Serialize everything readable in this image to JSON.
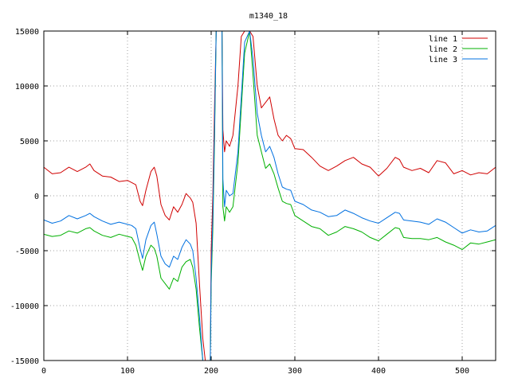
{
  "chart_data": {
    "type": "line",
    "title": "m1340_18",
    "xlabel": "",
    "ylabel": "",
    "xlim": [
      0,
      540
    ],
    "ylim": [
      -15000,
      15000
    ],
    "xticks": [
      0,
      100,
      200,
      300,
      400,
      500
    ],
    "yticks": [
      -15000,
      -10000,
      -5000,
      0,
      5000,
      10000,
      15000
    ],
    "grid": true,
    "legend_position": "top-right",
    "series": [
      {
        "name": "line 1",
        "color": "#d00000",
        "points": [
          [
            0,
            2600
          ],
          [
            10,
            2000
          ],
          [
            20,
            2100
          ],
          [
            30,
            2600
          ],
          [
            40,
            2200
          ],
          [
            50,
            2600
          ],
          [
            55,
            2900
          ],
          [
            60,
            2300
          ],
          [
            70,
            1800
          ],
          [
            80,
            1700
          ],
          [
            90,
            1300
          ],
          [
            100,
            1400
          ],
          [
            105,
            1200
          ],
          [
            110,
            1000
          ],
          [
            115,
            -500
          ],
          [
            118,
            -900
          ],
          [
            122,
            500
          ],
          [
            128,
            2200
          ],
          [
            132,
            2600
          ],
          [
            135,
            1800
          ],
          [
            140,
            -800
          ],
          [
            145,
            -1800
          ],
          [
            150,
            -2200
          ],
          [
            155,
            -1000
          ],
          [
            160,
            -1500
          ],
          [
            165,
            -800
          ],
          [
            170,
            200
          ],
          [
            175,
            -200
          ],
          [
            178,
            -600
          ],
          [
            182,
            -2500
          ],
          [
            186,
            -8000
          ],
          [
            190,
            -13000
          ],
          [
            193,
            -15000
          ],
          [
            199,
            -15000
          ],
          [
            200,
            -5000
          ],
          [
            202,
            0
          ],
          [
            204,
            8000
          ],
          [
            206,
            15000
          ],
          [
            213,
            15000
          ],
          [
            214,
            6000
          ],
          [
            216,
            4000
          ],
          [
            218,
            5000
          ],
          [
            222,
            4500
          ],
          [
            226,
            5500
          ],
          [
            232,
            10000
          ],
          [
            236,
            14500
          ],
          [
            240,
            15000
          ],
          [
            246,
            15000
          ],
          [
            250,
            14500
          ],
          [
            255,
            10000
          ],
          [
            260,
            8000
          ],
          [
            265,
            8500
          ],
          [
            270,
            9000
          ],
          [
            275,
            7000
          ],
          [
            280,
            5500
          ],
          [
            285,
            5000
          ],
          [
            290,
            5500
          ],
          [
            295,
            5200
          ],
          [
            300,
            4300
          ],
          [
            310,
            4200
          ],
          [
            320,
            3500
          ],
          [
            330,
            2700
          ],
          [
            340,
            2300
          ],
          [
            350,
            2700
          ],
          [
            360,
            3200
          ],
          [
            370,
            3500
          ],
          [
            380,
            2900
          ],
          [
            390,
            2600
          ],
          [
            400,
            1800
          ],
          [
            410,
            2500
          ],
          [
            420,
            3500
          ],
          [
            425,
            3300
          ],
          [
            430,
            2600
          ],
          [
            440,
            2300
          ],
          [
            450,
            2500
          ],
          [
            460,
            2100
          ],
          [
            470,
            3200
          ],
          [
            480,
            3000
          ],
          [
            490,
            2000
          ],
          [
            500,
            2300
          ],
          [
            510,
            1900
          ],
          [
            520,
            2100
          ],
          [
            530,
            2000
          ],
          [
            540,
            2600
          ]
        ]
      },
      {
        "name": "line 2",
        "color": "#00b000",
        "points": [
          [
            0,
            -3500
          ],
          [
            10,
            -3700
          ],
          [
            20,
            -3600
          ],
          [
            30,
            -3200
          ],
          [
            40,
            -3400
          ],
          [
            50,
            -3000
          ],
          [
            55,
            -2900
          ],
          [
            60,
            -3200
          ],
          [
            70,
            -3600
          ],
          [
            80,
            -3800
          ],
          [
            90,
            -3500
          ],
          [
            100,
            -3700
          ],
          [
            105,
            -3800
          ],
          [
            110,
            -4500
          ],
          [
            115,
            -6000
          ],
          [
            118,
            -6800
          ],
          [
            122,
            -5500
          ],
          [
            128,
            -4500
          ],
          [
            132,
            -4800
          ],
          [
            135,
            -5500
          ],
          [
            140,
            -7500
          ],
          [
            145,
            -8000
          ],
          [
            150,
            -8500
          ],
          [
            155,
            -7500
          ],
          [
            160,
            -7800
          ],
          [
            165,
            -6500
          ],
          [
            170,
            -6000
          ],
          [
            175,
            -5800
          ],
          [
            178,
            -6500
          ],
          [
            182,
            -8500
          ],
          [
            186,
            -12000
          ],
          [
            190,
            -15000
          ],
          [
            199,
            -15000
          ],
          [
            200,
            -8000
          ],
          [
            202,
            -3000
          ],
          [
            204,
            5000
          ],
          [
            206,
            15000
          ],
          [
            213,
            15000
          ],
          [
            214,
            -1000
          ],
          [
            216,
            -2300
          ],
          [
            218,
            -1000
          ],
          [
            222,
            -1500
          ],
          [
            226,
            -1000
          ],
          [
            232,
            3000
          ],
          [
            236,
            8000
          ],
          [
            240,
            13000
          ],
          [
            246,
            15000
          ],
          [
            250,
            11000
          ],
          [
            255,
            5500
          ],
          [
            260,
            4000
          ],
          [
            265,
            2500
          ],
          [
            270,
            2900
          ],
          [
            275,
            2000
          ],
          [
            280,
            700
          ],
          [
            285,
            -500
          ],
          [
            290,
            -700
          ],
          [
            295,
            -800
          ],
          [
            300,
            -1800
          ],
          [
            310,
            -2300
          ],
          [
            320,
            -2800
          ],
          [
            330,
            -3000
          ],
          [
            340,
            -3600
          ],
          [
            350,
            -3300
          ],
          [
            360,
            -2800
          ],
          [
            370,
            -3000
          ],
          [
            380,
            -3300
          ],
          [
            390,
            -3800
          ],
          [
            400,
            -4100
          ],
          [
            410,
            -3500
          ],
          [
            420,
            -2900
          ],
          [
            425,
            -3000
          ],
          [
            430,
            -3800
          ],
          [
            440,
            -3900
          ],
          [
            450,
            -3900
          ],
          [
            460,
            -4000
          ],
          [
            470,
            -3800
          ],
          [
            480,
            -4200
          ],
          [
            490,
            -4500
          ],
          [
            500,
            -4900
          ],
          [
            510,
            -4300
          ],
          [
            520,
            -4400
          ],
          [
            530,
            -4200
          ],
          [
            540,
            -4000
          ]
        ]
      },
      {
        "name": "line 3",
        "color": "#0070e0",
        "points": [
          [
            0,
            -2200
          ],
          [
            10,
            -2500
          ],
          [
            20,
            -2300
          ],
          [
            30,
            -1800
          ],
          [
            40,
            -2100
          ],
          [
            50,
            -1800
          ],
          [
            55,
            -1600
          ],
          [
            60,
            -1900
          ],
          [
            70,
            -2300
          ],
          [
            80,
            -2600
          ],
          [
            90,
            -2400
          ],
          [
            100,
            -2600
          ],
          [
            105,
            -2700
          ],
          [
            110,
            -3000
          ],
          [
            115,
            -4800
          ],
          [
            118,
            -5700
          ],
          [
            122,
            -4000
          ],
          [
            128,
            -2700
          ],
          [
            132,
            -2400
          ],
          [
            135,
            -3500
          ],
          [
            140,
            -5500
          ],
          [
            145,
            -6200
          ],
          [
            150,
            -6500
          ],
          [
            155,
            -5500
          ],
          [
            160,
            -5800
          ],
          [
            165,
            -4700
          ],
          [
            170,
            -4000
          ],
          [
            175,
            -4400
          ],
          [
            178,
            -5000
          ],
          [
            182,
            -7500
          ],
          [
            186,
            -11000
          ],
          [
            190,
            -15000
          ],
          [
            199,
            -15000
          ],
          [
            200,
            -7000
          ],
          [
            202,
            -2000
          ],
          [
            204,
            6000
          ],
          [
            206,
            15000
          ],
          [
            213,
            15000
          ],
          [
            214,
            1500
          ],
          [
            216,
            -1000
          ],
          [
            218,
            500
          ],
          [
            222,
            0
          ],
          [
            226,
            200
          ],
          [
            232,
            4000
          ],
          [
            236,
            9000
          ],
          [
            240,
            14000
          ],
          [
            246,
            15000
          ],
          [
            250,
            12500
          ],
          [
            255,
            7500
          ],
          [
            260,
            5500
          ],
          [
            265,
            4000
          ],
          [
            270,
            4500
          ],
          [
            275,
            3500
          ],
          [
            280,
            2000
          ],
          [
            285,
            800
          ],
          [
            290,
            600
          ],
          [
            295,
            500
          ],
          [
            300,
            -500
          ],
          [
            310,
            -800
          ],
          [
            320,
            -1300
          ],
          [
            330,
            -1500
          ],
          [
            340,
            -1900
          ],
          [
            350,
            -1800
          ],
          [
            360,
            -1300
          ],
          [
            370,
            -1600
          ],
          [
            380,
            -2000
          ],
          [
            390,
            -2300
          ],
          [
            400,
            -2500
          ],
          [
            410,
            -2000
          ],
          [
            420,
            -1500
          ],
          [
            425,
            -1600
          ],
          [
            430,
            -2200
          ],
          [
            440,
            -2300
          ],
          [
            450,
            -2400
          ],
          [
            460,
            -2600
          ],
          [
            470,
            -2100
          ],
          [
            480,
            -2400
          ],
          [
            490,
            -2900
          ],
          [
            500,
            -3400
          ],
          [
            510,
            -3100
          ],
          [
            520,
            -3300
          ],
          [
            530,
            -3200
          ],
          [
            540,
            -2700
          ]
        ]
      }
    ]
  }
}
